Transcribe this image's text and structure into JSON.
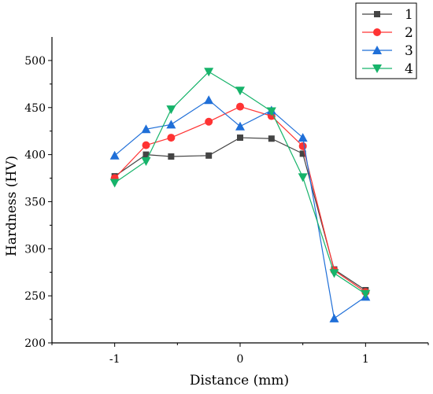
{
  "chart_data": {
    "type": "line",
    "xlabel": "Distance (mm)",
    "ylabel": "Hardness (HV)",
    "xlim": [
      -1.5,
      1.5
    ],
    "ylim": [
      200,
      525
    ],
    "xticks": [
      -1,
      0,
      1
    ],
    "xtick_labels": [
      "-1",
      "0",
      "1"
    ],
    "yticks": [
      200,
      250,
      300,
      350,
      400,
      450,
      500
    ],
    "ytick_labels": [
      "200",
      "250",
      "300",
      "350",
      "400",
      "450",
      "500"
    ],
    "grid": false,
    "legend_position": "top-right",
    "series": [
      {
        "name": "1",
        "color": "#444444",
        "marker": "square",
        "x": [
          -1.0,
          -0.75,
          -0.55,
          -0.25,
          0.0,
          0.25,
          0.5,
          0.75,
          1.0
        ],
        "y": [
          377,
          400,
          398,
          399,
          418,
          417,
          401,
          278,
          256
        ]
      },
      {
        "name": "2",
        "color": "#ff3333",
        "marker": "circle",
        "x": [
          -1.0,
          -0.75,
          -0.55,
          -0.25,
          0.0,
          0.25,
          0.5,
          0.75,
          1.0
        ],
        "y": [
          375,
          410,
          418,
          435,
          451,
          441,
          409,
          277,
          254
        ]
      },
      {
        "name": "3",
        "color": "#1f6fd8",
        "marker": "triangle-up",
        "x": [
          -1.0,
          -0.75,
          -0.55,
          -0.25,
          0.0,
          0.25,
          0.5,
          0.75,
          1.0
        ],
        "y": [
          399,
          427,
          432,
          458,
          430,
          447,
          418,
          226,
          249
        ]
      },
      {
        "name": "4",
        "color": "#16b36a",
        "marker": "triangle-down",
        "x": [
          -1.0,
          -0.75,
          -0.55,
          -0.25,
          0.0,
          0.25,
          0.5,
          0.75,
          1.0
        ],
        "y": [
          370,
          393,
          448,
          488,
          468,
          446,
          376,
          274,
          252
        ]
      }
    ]
  }
}
